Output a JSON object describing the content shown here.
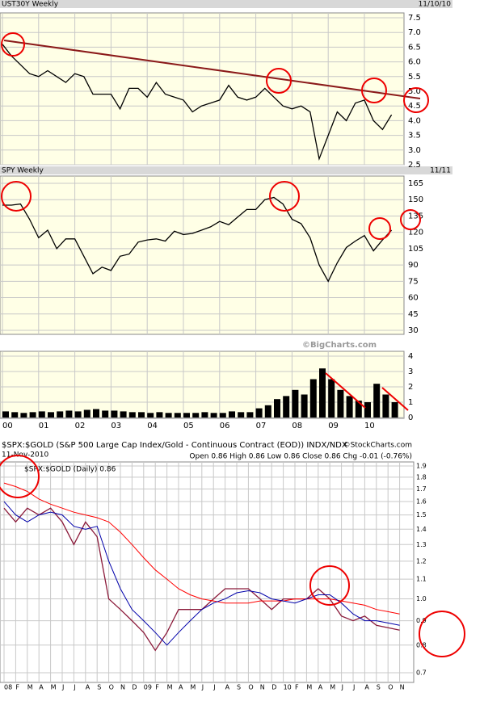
{
  "chart_data": [
    {
      "type": "line",
      "title": "UST30Y Weekly",
      "date": "11/10/10",
      "color": "#000000",
      "values": [
        6.6,
        6.2,
        5.9,
        5.6,
        5.5,
        5.7,
        5.5,
        5.3,
        5.6,
        5.5,
        4.9,
        4.9,
        4.9,
        4.4,
        5.1,
        5.1,
        4.8,
        5.3,
        4.9,
        4.8,
        4.7,
        4.3,
        4.5,
        4.6,
        4.7,
        5.2,
        4.8,
        4.7,
        4.8,
        5.1,
        4.8,
        4.5,
        4.4,
        4.5,
        4.3,
        2.7,
        3.5,
        4.3,
        4.0,
        4.6,
        4.7,
        4.0,
        3.7,
        4.2
      ],
      "ylim": [
        2.5,
        7.5
      ],
      "yticks": [
        2.5,
        {
          "value": 3,
          "label": "3.0"
        },
        3.5,
        {
          "value": 4,
          "label": "4.0"
        },
        4.5,
        {
          "value": 5,
          "label": "5.0"
        },
        5.5,
        {
          "value": 6,
          "label": "6.0"
        },
        6.5,
        {
          "value": 7,
          "label": "7.0"
        },
        7.5
      ],
      "grid": true
    },
    {
      "type": "line",
      "title": "SPY Weekly",
      "date": "11/11",
      "color": "#000000",
      "values": [
        145,
        145,
        146,
        132,
        115,
        122,
        105,
        114,
        114,
        98,
        82,
        88,
        85,
        98,
        100,
        111,
        113,
        114,
        112,
        121,
        118,
        119,
        122,
        125,
        130,
        127,
        134,
        141,
        141,
        150,
        152,
        146,
        132,
        128,
        115,
        90,
        75,
        92,
        106,
        112,
        117,
        103,
        113,
        122
      ],
      "ylim": [
        30,
        165
      ],
      "yticks": [
        30,
        45,
        60,
        75,
        90,
        105,
        120,
        135,
        150,
        165
      ],
      "grid": true,
      "credit": "©BigCharts.com"
    },
    {
      "type": "bar",
      "color": "#000000",
      "categories": [
        "00",
        null,
        null,
        null,
        "01",
        null,
        null,
        null,
        "02",
        null,
        null,
        null,
        "03",
        null,
        null,
        null,
        "04",
        null,
        null,
        null,
        "05",
        null,
        null,
        null,
        "06",
        null,
        null,
        null,
        "07",
        null,
        null,
        null,
        "08",
        null,
        null,
        null,
        "09",
        null,
        null,
        null,
        "10",
        null,
        null,
        null
      ],
      "values": [
        0.4,
        0.35,
        0.3,
        0.35,
        0.4,
        0.35,
        0.4,
        0.45,
        0.4,
        0.5,
        0.55,
        0.45,
        0.45,
        0.4,
        0.35,
        0.35,
        0.3,
        0.35,
        0.3,
        0.3,
        0.3,
        0.3,
        0.35,
        0.3,
        0.3,
        0.4,
        0.35,
        0.35,
        0.6,
        0.8,
        1.2,
        1.4,
        1.8,
        1.5,
        2.5,
        3.2,
        2.5,
        1.8,
        1.4,
        1.1,
        1.0,
        2.2,
        1.5,
        1.0
      ],
      "ylim": [
        0,
        4
      ],
      "yticks": [
        0,
        1,
        2,
        3,
        4
      ],
      "grid": true
    },
    {
      "type": "line",
      "title": "$SPX:$GOLD (S&P 500 Large Cap Index/Gold - Continuous Contract (EOD)) INDX/NDX",
      "credit": "©StockCharts.com",
      "date": "11-Nov-2010",
      "quote": "Open 0.86 High 0.86 Low 0.86 Close 0.86 Chg -0.01 (-0.76%)",
      "log_scale": true,
      "categories": [
        "08",
        "F",
        "M",
        "A",
        "M",
        "J",
        "J",
        "A",
        "S",
        "O",
        "N",
        "D",
        "09",
        "F",
        "M",
        "A",
        "M",
        "J",
        "J",
        "A",
        "S",
        "O",
        "N",
        "D",
        "10",
        "F",
        "M",
        "A",
        "M",
        "J",
        "J",
        "A",
        "S",
        "O",
        "N"
      ],
      "series": [
        {
          "name": "$SPX:$GOLD (Daily) 0.86",
          "color": "#8b1a3a",
          "values": [
            1.55,
            1.45,
            1.55,
            1.5,
            1.55,
            1.45,
            1.3,
            1.45,
            1.35,
            1.0,
            0.95,
            0.9,
            0.85,
            0.78,
            0.85,
            0.95,
            0.95,
            0.95,
            1.0,
            1.05,
            1.05,
            1.05,
            1.0,
            0.95,
            1.0,
            1.0,
            1.0,
            1.05,
            1.0,
            0.92,
            0.9,
            0.92,
            0.88,
            0.87,
            0.86
          ]
        },
        {
          "color": "#ff0000",
          "values": [
            1.75,
            1.72,
            1.68,
            1.62,
            1.58,
            1.55,
            1.52,
            1.5,
            1.48,
            1.45,
            1.38,
            1.3,
            1.22,
            1.15,
            1.1,
            1.05,
            1.02,
            1.0,
            0.99,
            0.98,
            0.98,
            0.98,
            0.99,
            0.99,
            0.99,
            1.0,
            1.0,
            1.0,
            1.0,
            0.99,
            0.98,
            0.97,
            0.95,
            0.94,
            0.93
          ]
        },
        {
          "color": "#0000aa",
          "values": [
            1.6,
            1.5,
            1.45,
            1.5,
            1.52,
            1.5,
            1.42,
            1.4,
            1.42,
            1.2,
            1.05,
            0.95,
            0.9,
            0.85,
            0.8,
            0.85,
            0.9,
            0.95,
            0.98,
            1.0,
            1.03,
            1.04,
            1.03,
            1.0,
            0.99,
            0.98,
            1.0,
            1.02,
            1.02,
            0.98,
            0.93,
            0.9,
            0.9,
            0.89,
            0.88
          ]
        }
      ],
      "ylim": [
        0.68,
        1.95
      ],
      "yticks": [
        0.7,
        0.8,
        0.9,
        {
          "value": 1,
          "label": "1.0"
        },
        1.1,
        1.2,
        1.3,
        1.4,
        1.5,
        1.6,
        1.7,
        1.8,
        1.9
      ],
      "grid": true
    }
  ]
}
